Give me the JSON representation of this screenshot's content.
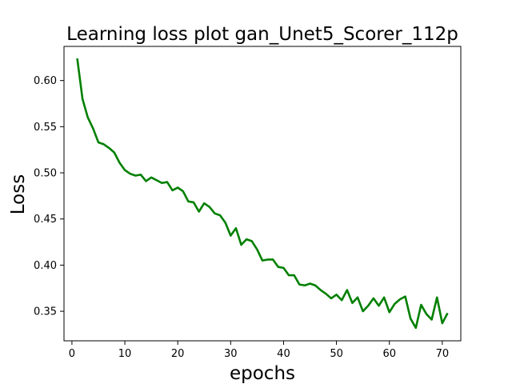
{
  "chart_data": {
    "type": "line",
    "title": "Learning loss plot gan_Unet5_Scorer_112p",
    "xlabel": "epochs",
    "ylabel": "Loss",
    "xlim": [
      -1.5,
      73.5
    ],
    "ylim": [
      0.318,
      0.637
    ],
    "xticks": [
      0,
      10,
      20,
      30,
      40,
      50,
      60,
      70
    ],
    "yticks": [
      0.35,
      0.4,
      0.45,
      0.5,
      0.55,
      0.6
    ],
    "ytick_labels": [
      "0.35",
      "0.40",
      "0.45",
      "0.50",
      "0.55",
      "0.60"
    ],
    "grid": false,
    "series": [
      {
        "color": "#008000",
        "x": [
          1,
          2,
          3,
          4,
          5,
          6,
          7,
          8,
          9,
          10,
          11,
          12,
          13,
          14,
          15,
          16,
          17,
          18,
          19,
          20,
          21,
          22,
          23,
          24,
          25,
          26,
          27,
          28,
          29,
          30,
          31,
          32,
          33,
          34,
          35,
          36,
          37,
          38,
          39,
          40,
          41,
          42,
          43,
          44,
          45,
          46,
          47,
          48,
          49,
          50,
          51,
          52,
          53,
          54,
          55,
          56,
          57,
          58,
          59,
          60,
          61,
          62,
          63,
          64,
          65,
          66,
          67,
          68,
          69,
          70,
          71
        ],
        "y": [
          0.624,
          0.58,
          0.56,
          0.548,
          0.533,
          0.531,
          0.527,
          0.522,
          0.511,
          0.503,
          0.499,
          0.497,
          0.498,
          0.491,
          0.495,
          0.492,
          0.489,
          0.49,
          0.481,
          0.484,
          0.48,
          0.469,
          0.468,
          0.458,
          0.467,
          0.463,
          0.456,
          0.454,
          0.446,
          0.432,
          0.44,
          0.422,
          0.428,
          0.426,
          0.417,
          0.405,
          0.406,
          0.406,
          0.398,
          0.397,
          0.389,
          0.389,
          0.379,
          0.378,
          0.38,
          0.378,
          0.373,
          0.369,
          0.364,
          0.368,
          0.362,
          0.373,
          0.359,
          0.365,
          0.35,
          0.356,
          0.364,
          0.356,
          0.365,
          0.349,
          0.358,
          0.363,
          0.366,
          0.342,
          0.332,
          0.357,
          0.347,
          0.341,
          0.365,
          0.337,
          0.348
        ]
      }
    ]
  }
}
